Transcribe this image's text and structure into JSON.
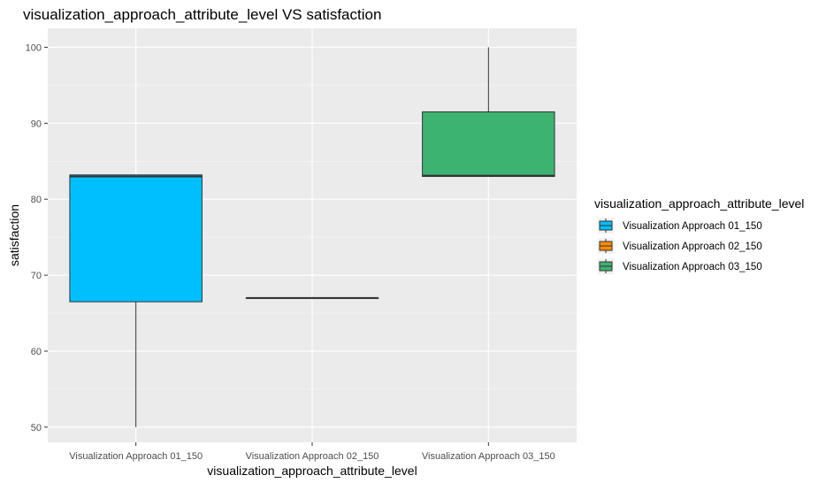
{
  "chart_data": {
    "type": "box",
    "title": "visualization_approach_attribute_level VS satisfaction",
    "xlabel": "visualization_approach_attribute_level",
    "ylabel": "satisfaction",
    "ylim": [
      48,
      102.5
    ],
    "yticks": [
      50,
      60,
      70,
      80,
      90,
      100
    ],
    "categories": [
      "Visualization Approach 01_150",
      "Visualization Approach 02_150",
      "Visualization Approach 03_150"
    ],
    "boxes": [
      {
        "category": "Visualization Approach 01_150",
        "min": 50,
        "q1": 66.5,
        "median": 83,
        "q3": 83.2,
        "max": 83.2,
        "color": "#00BFFF"
      },
      {
        "category": "Visualization Approach 02_150",
        "min": 67,
        "q1": 67,
        "median": 67,
        "q3": 67,
        "max": 67,
        "color": "#FF8C00"
      },
      {
        "category": "Visualization Approach 03_150",
        "min": 83,
        "q1": 83,
        "median": 83.1,
        "q3": 91.5,
        "max": 100,
        "color": "#3CB371"
      }
    ],
    "grid": true,
    "legend": {
      "title": "visualization_approach_attribute_level",
      "position": "right",
      "entries": [
        "Visualization Approach 01_150",
        "Visualization Approach 02_150",
        "Visualization Approach 03_150"
      ]
    },
    "colors": {
      "panel_bg": "#EBEBEB",
      "grid_major": "#FFFFFF",
      "grid_minor": "#F5F5F5",
      "box_outline": "#333333"
    }
  }
}
